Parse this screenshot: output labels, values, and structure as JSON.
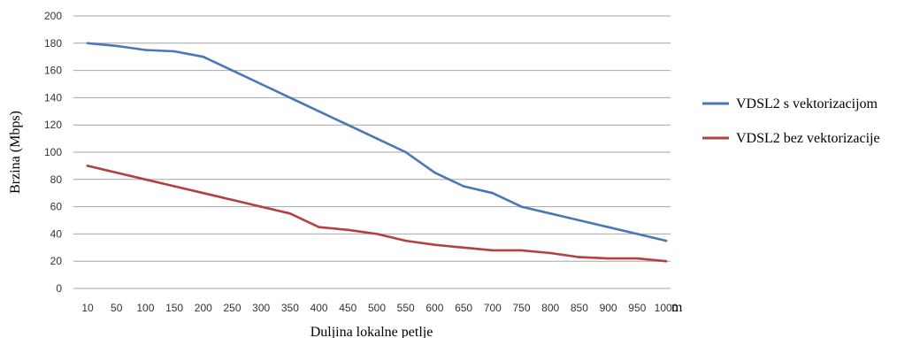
{
  "chart_data": {
    "type": "line",
    "title": "",
    "xlabel": "Duljina lokalne petlje",
    "x_unit": "m",
    "ylabel": "Brzina (Mbps)",
    "ylim": [
      0,
      200
    ],
    "yticks": [
      0,
      20,
      40,
      60,
      80,
      100,
      120,
      140,
      160,
      180,
      200
    ],
    "grid": true,
    "legend_position": "right",
    "categories": [
      "10",
      "50",
      "100",
      "150",
      "200",
      "250",
      "300",
      "350",
      "400",
      "450",
      "500",
      "550",
      "600",
      "650",
      "700",
      "750",
      "800",
      "850",
      "900",
      "950",
      "1000"
    ],
    "series": [
      {
        "name": "VDSL2 s vektorizacijom",
        "color": "#4a78b5",
        "values": [
          180,
          178,
          175,
          174,
          170,
          160,
          150,
          140,
          130,
          120,
          110,
          100,
          85,
          75,
          70,
          60,
          55,
          50,
          45,
          40,
          35
        ]
      },
      {
        "name": "VDSL2 bez vektorizacije",
        "color": "#b2423f",
        "values": [
          90,
          85,
          80,
          75,
          70,
          65,
          60,
          55,
          45,
          43,
          40,
          35,
          32,
          30,
          28,
          28,
          26,
          23,
          22,
          22,
          20
        ]
      }
    ]
  }
}
